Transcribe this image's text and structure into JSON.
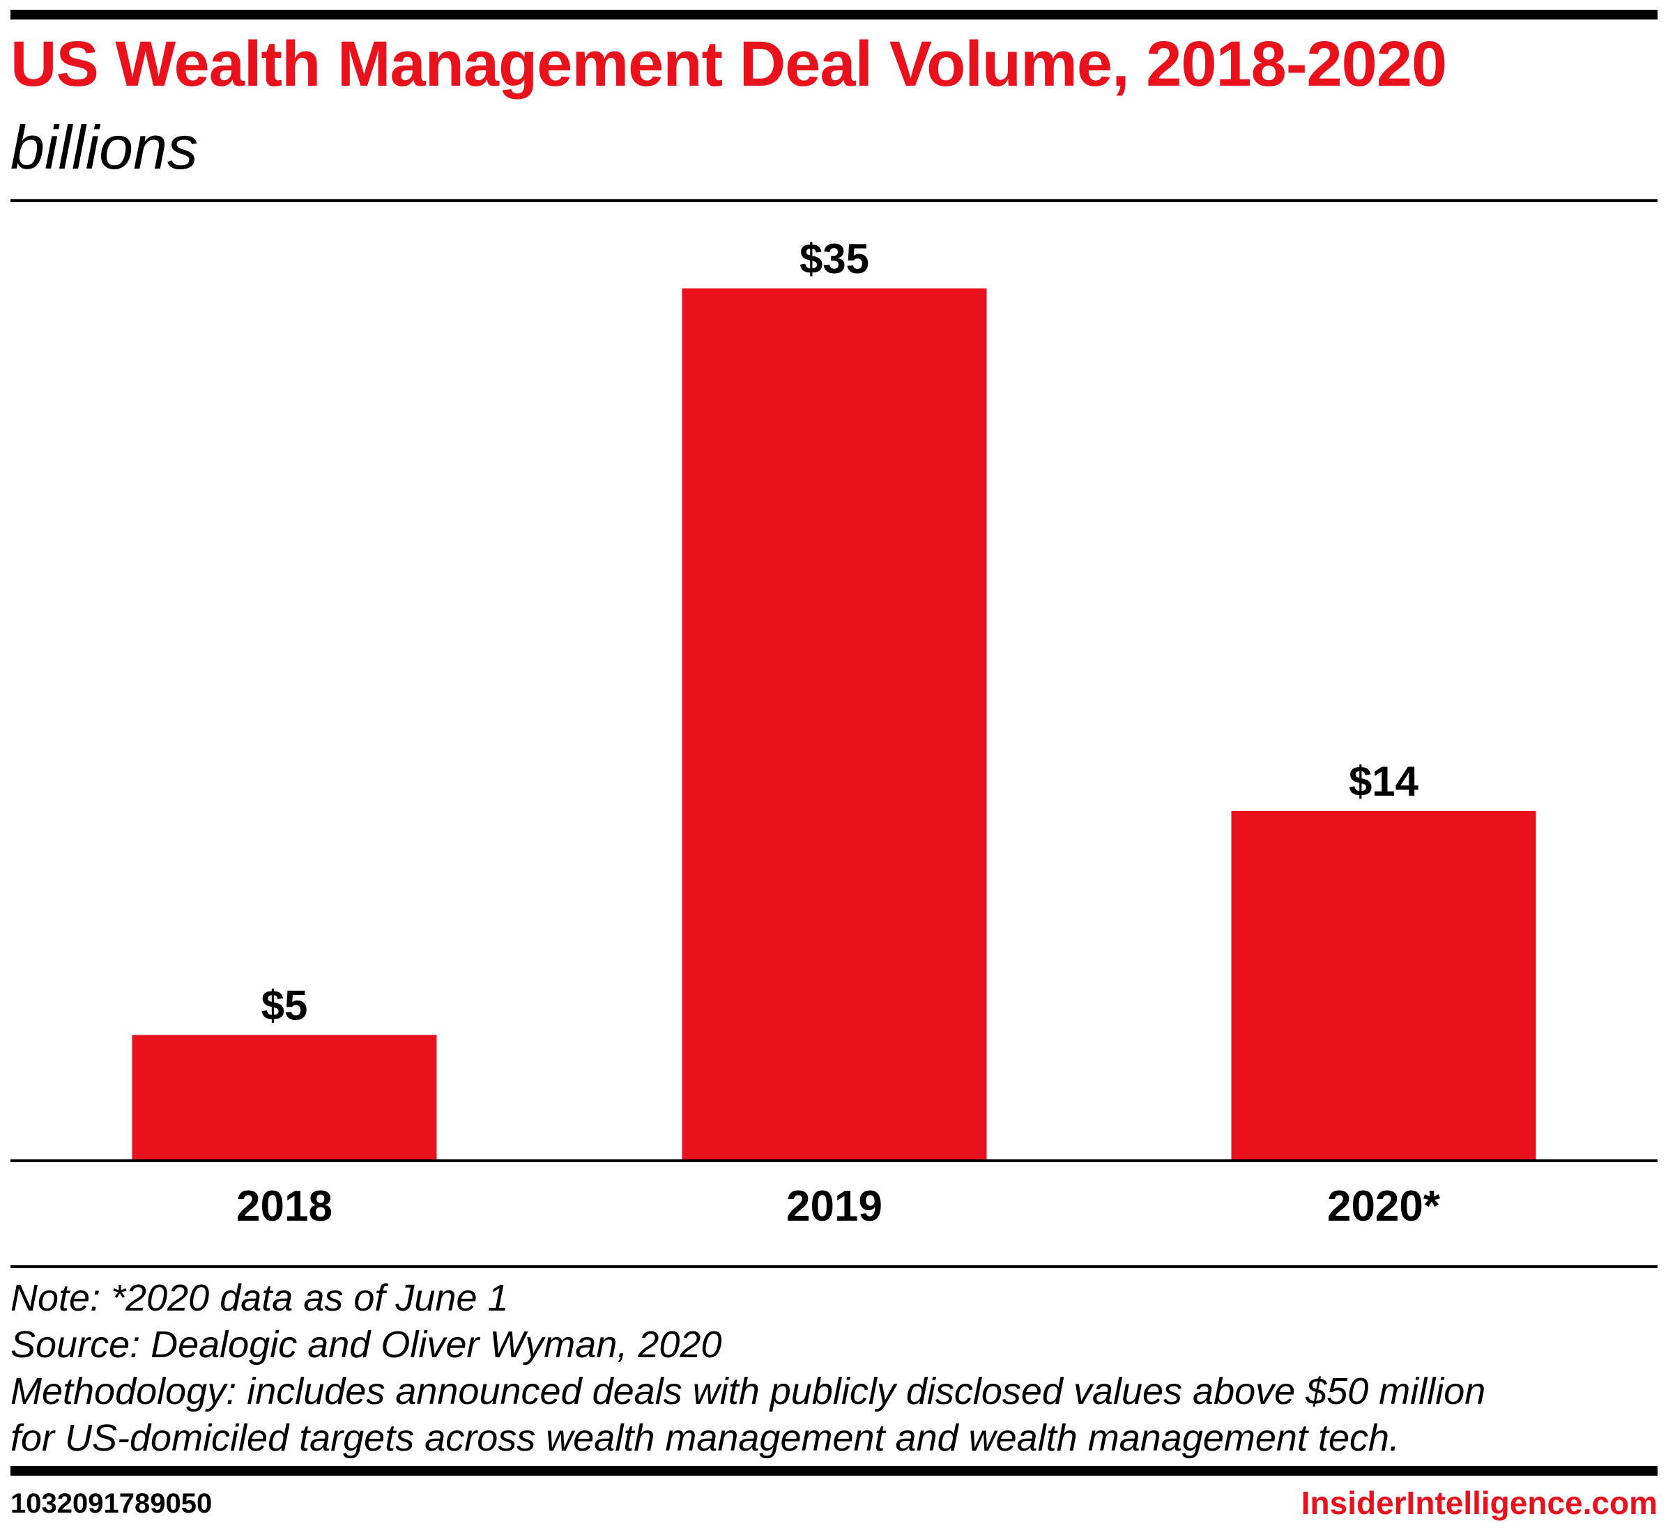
{
  "header": {
    "title": "US Wealth Management Deal Volume, 2018-2020",
    "subtitle": "billions"
  },
  "chart_data": {
    "type": "bar",
    "categories": [
      "2018",
      "2019",
      "2020*"
    ],
    "values": [
      5,
      35,
      14
    ],
    "value_labels": [
      "$5",
      "$35",
      "$14"
    ],
    "ylim": [
      0,
      35
    ],
    "grid": false,
    "legend": "none",
    "bar_color": "#e8111c"
  },
  "footer": {
    "note": "Note: *2020 data as of June 1",
    "source": "Source: Dealogic and Oliver Wyman, 2020",
    "methodology_line1": "Methodology: includes announced deals with publicly disclosed values above $50 million",
    "methodology_line2": "for US-domiciled targets across wealth management and wealth management tech.",
    "chart_id": "1032091789050",
    "brand": "InsiderIntelligence.com"
  },
  "colors": {
    "accent": "#e8111c",
    "text": "#000000"
  }
}
